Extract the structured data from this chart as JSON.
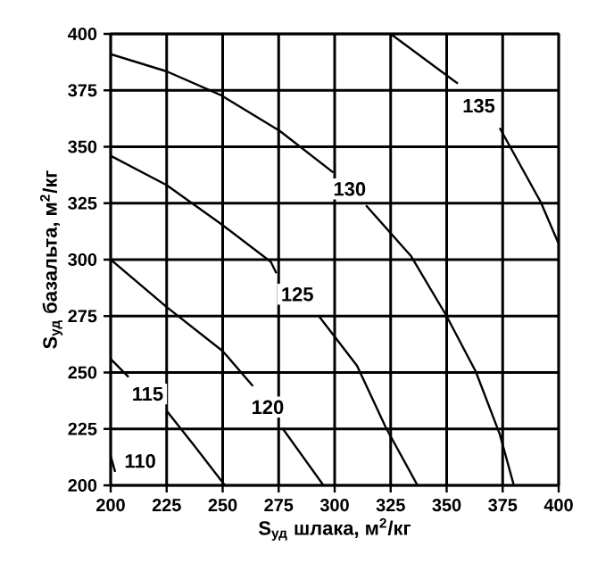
{
  "chart_data": {
    "type": "line",
    "xlabel": "S$_{уд}$ шлака, м$^{2}$/кг",
    "ylabel": "S$_{уд}$ базальта, м$^{2}$/кг",
    "xlim": [
      200,
      400
    ],
    "ylim": [
      200,
      400
    ],
    "xticks": [
      200,
      225,
      250,
      275,
      300,
      325,
      350,
      375,
      400
    ],
    "yticks": [
      200,
      225,
      250,
      275,
      300,
      325,
      350,
      375,
      400
    ],
    "grid": true,
    "marker": "none",
    "line_style": "solid",
    "series": [
      {
        "name": "110",
        "color": "#000000",
        "x": [
          200,
          202
        ],
        "values": [
          213,
          206
        ]
      },
      {
        "name": "115",
        "color": "#000000",
        "x": [
          200,
          208,
          null,
          225,
          237,
          251
        ],
        "values": [
          256,
          248,
          null,
          233,
          218,
          200
        ]
      },
      {
        "name": "120",
        "color": "#000000",
        "x": [
          200,
          225,
          250,
          263.5,
          null,
          276.7,
          295
        ],
        "values": [
          300,
          279,
          259.5,
          244,
          null,
          225.3,
          200
        ]
      },
      {
        "name": "125",
        "color": "#000000",
        "x": [
          200,
          225,
          249,
          271.5,
          274,
          null,
          292.7,
          310,
          323,
          337
        ],
        "values": [
          346,
          333,
          316,
          299,
          294,
          null,
          275.3,
          253,
          225.3,
          200
        ]
      },
      {
        "name": "130",
        "color": "#000000",
        "x": [
          200,
          225,
          249,
          275.5,
          299.4,
          null,
          314,
          334,
          349.8,
          363,
          373.7,
          380
        ],
        "values": [
          391,
          383.4,
          373,
          357,
          338.6,
          null,
          324,
          301.7,
          275.3,
          250.4,
          222.7,
          200
        ]
      },
      {
        "name": "135",
        "color": "#000000",
        "x": [
          325,
          355,
          null,
          373.7,
          392,
          400
        ],
        "values": [
          400,
          378,
          null,
          358.3,
          325.5,
          307
        ]
      }
    ]
  }
}
